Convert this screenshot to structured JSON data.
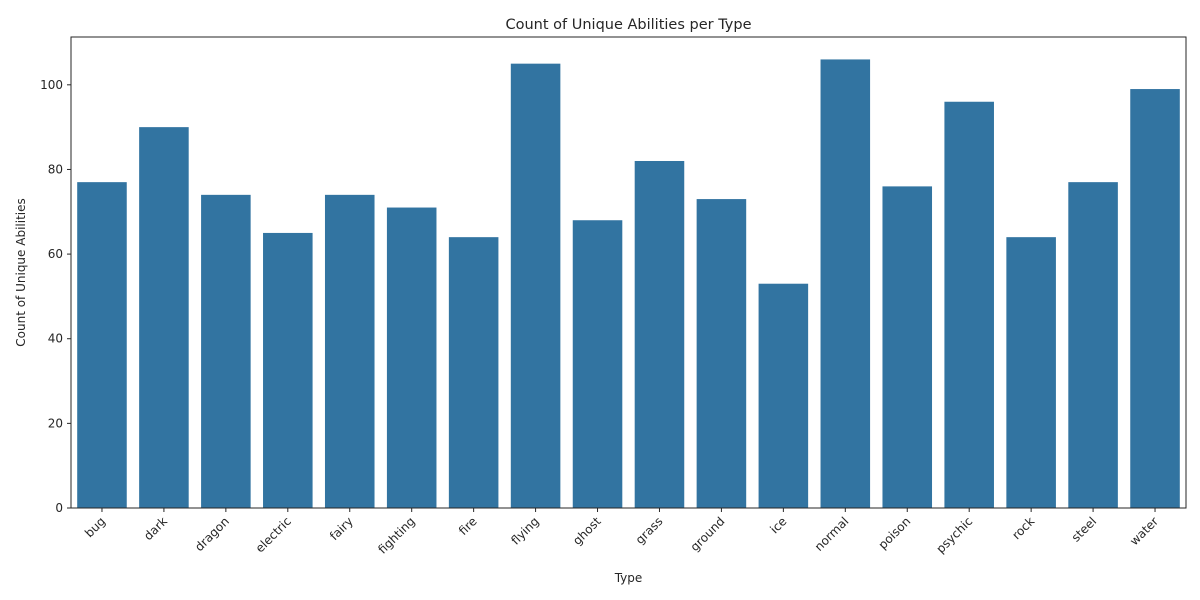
{
  "chart_data": {
    "type": "bar",
    "title": "Count of Unique Abilities per Type",
    "xlabel": "Type",
    "ylabel": "Count of Unique Abilities",
    "categories": [
      "bug",
      "dark",
      "dragon",
      "electric",
      "fairy",
      "fighting",
      "fire",
      "flying",
      "ghost",
      "grass",
      "ground",
      "ice",
      "normal",
      "poison",
      "psychic",
      "rock",
      "steel",
      "water"
    ],
    "values": [
      77,
      90,
      74,
      65,
      74,
      71,
      64,
      105,
      68,
      82,
      73,
      53,
      106,
      76,
      96,
      64,
      77,
      99
    ],
    "ylim": [
      0,
      111.3
    ],
    "yticks": [
      0,
      20,
      40,
      60,
      80,
      100
    ],
    "bar_color": "#3274a1",
    "grid": false,
    "legend": "none",
    "xtick_rotation": 45
  }
}
